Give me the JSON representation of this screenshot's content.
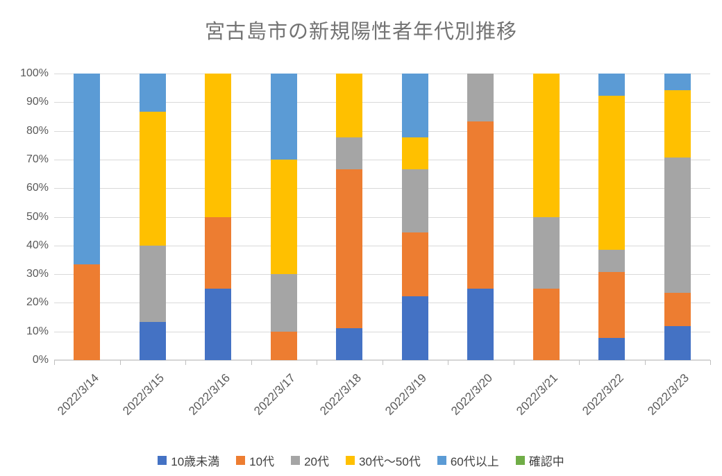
{
  "chart_data": {
    "type": "bar",
    "variant": "stacked-100-percent",
    "title": "宮古島市の新規陽性者年代別推移",
    "xlabel": "",
    "ylabel": "",
    "ylim": [
      0,
      100
    ],
    "yticks": [
      0,
      10,
      20,
      30,
      40,
      50,
      60,
      70,
      80,
      90,
      100
    ],
    "ytick_suffix": "%",
    "grid": true,
    "legend_position": "bottom",
    "categories": [
      "2022/3/14",
      "2022/3/15",
      "2022/3/16",
      "2022/3/17",
      "2022/3/18",
      "2022/3/19",
      "2022/3/20",
      "2022/3/21",
      "2022/3/22",
      "2022/3/23"
    ],
    "series": [
      {
        "name": "10歳未満",
        "color": "#4472C4",
        "values": [
          0,
          13.3,
          25,
          0,
          11.1,
          22.2,
          25,
          0,
          7.7,
          11.8
        ]
      },
      {
        "name": "10代",
        "color": "#ED7D31",
        "values": [
          33.3,
          0,
          25,
          10,
          55.6,
          22.2,
          58.3,
          25,
          23.1,
          11.8
        ]
      },
      {
        "name": "20代",
        "color": "#A5A5A5",
        "values": [
          0,
          26.7,
          0,
          20,
          11.1,
          22.2,
          16.7,
          25,
          7.7,
          47.1
        ]
      },
      {
        "name": "30代〜50代",
        "color": "#FFC000",
        "values": [
          0,
          46.7,
          50,
          40,
          22.2,
          11.1,
          0,
          50,
          53.8,
          23.5
        ]
      },
      {
        "name": "60代以上",
        "color": "#5B9BD5",
        "values": [
          66.7,
          13.3,
          0,
          30,
          0,
          22.2,
          0,
          0,
          7.7,
          5.9
        ]
      },
      {
        "name": "確認中",
        "color": "#70AD47",
        "values": [
          0,
          0,
          0,
          0,
          0,
          0,
          0,
          0,
          0,
          0
        ]
      }
    ]
  },
  "colors": {
    "title_text": "#737373",
    "axis_text": "#595959",
    "legend_text": "#404040",
    "gridline": "#d9d9d9",
    "axis_line": "#d6d6d6",
    "tick_mark": "#bfbfbf",
    "background": "#ffffff"
  }
}
